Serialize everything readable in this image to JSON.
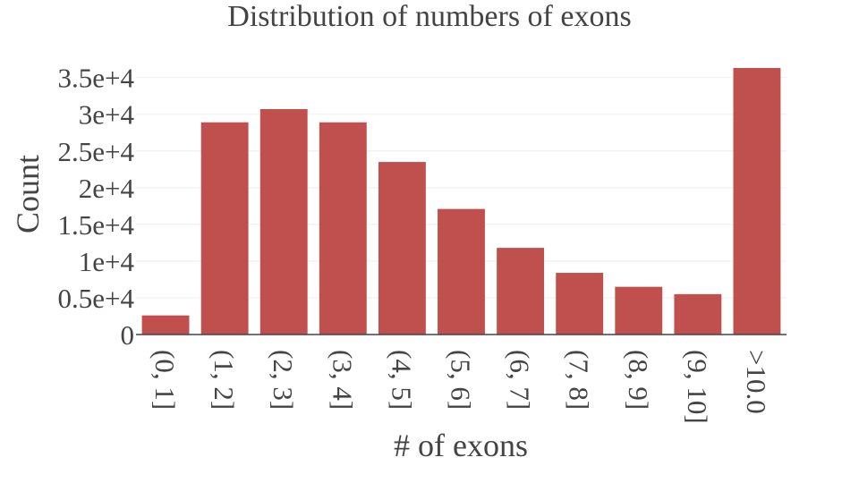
{
  "chart_data": {
    "type": "bar",
    "title": "Distribution of numbers of exons",
    "xlabel": "# of exons",
    "ylabel": "Count",
    "categories": [
      "(0, 1]",
      "(1, 2]",
      "(2, 3]",
      "(3, 4]",
      "(4, 5]",
      "(5, 6]",
      "(6, 7]",
      "(7, 8]",
      "(8, 9]",
      "(9, 10]",
      ">10.0"
    ],
    "values": [
      2600,
      28900,
      30700,
      28900,
      23500,
      17100,
      11800,
      8400,
      6500,
      5500,
      36300
    ],
    "ylim": [
      0,
      36300
    ],
    "yticks": [
      {
        "value": 0,
        "label": "0"
      },
      {
        "value": 5000,
        "label": "0.5e+4"
      },
      {
        "value": 10000,
        "label": "1e+4"
      },
      {
        "value": 15000,
        "label": "1.5e+4"
      },
      {
        "value": 20000,
        "label": "2e+4"
      },
      {
        "value": 25000,
        "label": "2.5e+4"
      },
      {
        "value": 30000,
        "label": "3e+4"
      },
      {
        "value": 35000,
        "label": "3.5e+4"
      }
    ],
    "grid": true,
    "legend": "none",
    "colors": {
      "bar": "#c0504d",
      "text": "#444444",
      "grid": "#eeeeee",
      "axis": "#444444"
    }
  }
}
